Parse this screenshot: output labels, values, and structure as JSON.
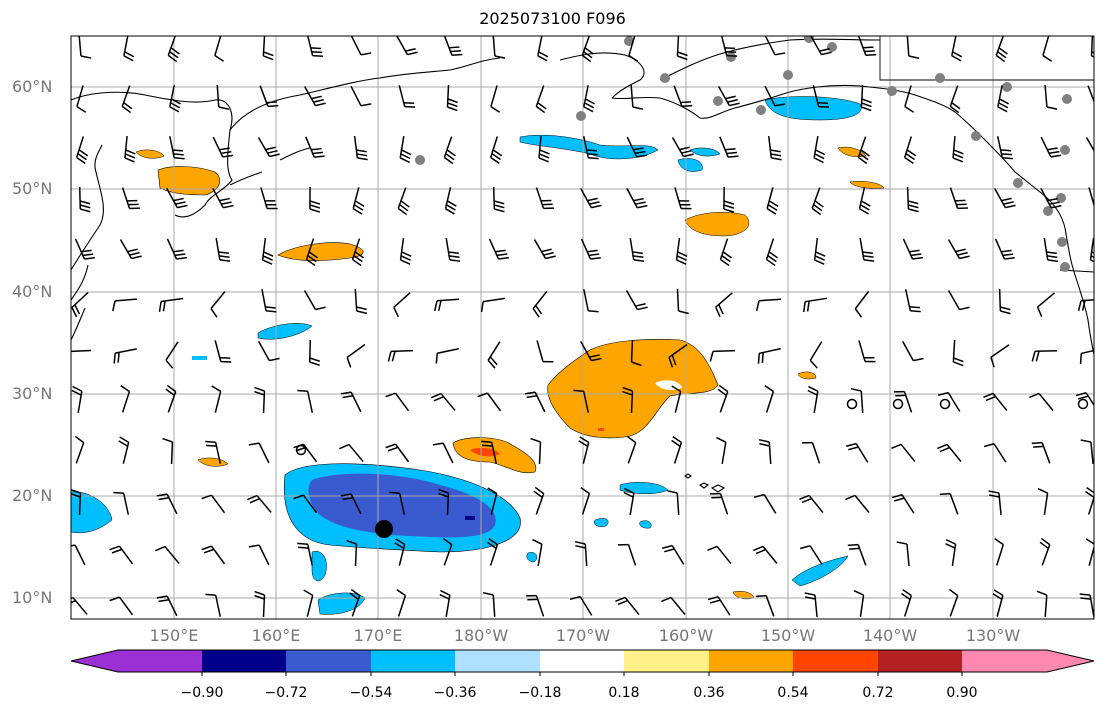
{
  "title": "2025073100 F096",
  "map": {
    "lat_labels": [
      "60°N",
      "50°N",
      "40°N",
      "30°N",
      "20°N",
      "10°N"
    ],
    "lon_labels": [
      "150°E",
      "160°E",
      "170°E",
      "180°W",
      "170°W",
      "160°W",
      "150°W",
      "140°W",
      "130°W"
    ],
    "colorbar": {
      "tick_labels": [
        "−0.90",
        "−0.72",
        "−0.54",
        "−0.36",
        "−0.18",
        "0.18",
        "0.36",
        "0.54",
        "0.72",
        "0.90"
      ],
      "colors": [
        "#9b30d4",
        "#00008b",
        "#3a5bd0",
        "#00bfff",
        "#b0e0ff",
        "#ffffff",
        "#fff08a",
        "#ffa500",
        "#ff4500",
        "#b22222",
        "#ff88b0"
      ]
    },
    "colors": {
      "coast": "#000000",
      "grid": "#aaaaaa",
      "station": "#808080",
      "barb": "#000000"
    }
  }
}
